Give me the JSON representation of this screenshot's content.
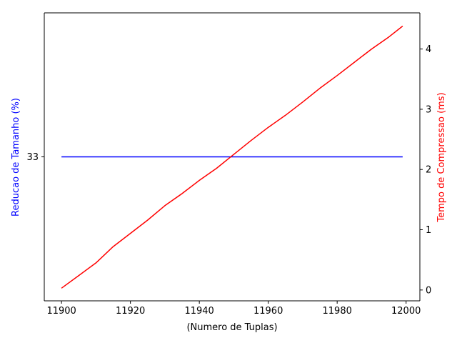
{
  "chart_data": {
    "type": "line",
    "xlabel": "(Numero de Tuplas)",
    "ylabel_left": "Reducao de Tamanho (%)",
    "ylabel_right": "Tempo de Compressao (ms)",
    "xlim": [
      11895,
      12004
    ],
    "xticks": [
      11900,
      11920,
      11940,
      11960,
      11980,
      12000
    ],
    "left_ylim": [
      20.0,
      46.0
    ],
    "left_yticks": [
      33
    ],
    "right_ylim": [
      -0.18,
      4.6
    ],
    "right_yticks": [
      0,
      1,
      2,
      3,
      4
    ],
    "colors": {
      "left": "#0000ff",
      "right": "#ff0000",
      "axes": "#000000"
    },
    "series": [
      {
        "axis": "left",
        "color": "#0000ff",
        "points": [
          [
            11900,
            33
          ],
          [
            11999,
            33
          ]
        ]
      },
      {
        "axis": "right",
        "color": "#ff0000",
        "points": [
          [
            11900,
            0.03
          ],
          [
            11905,
            0.24
          ],
          [
            11910,
            0.45
          ],
          [
            11915,
            0.72
          ],
          [
            11920,
            0.94
          ],
          [
            11925,
            1.16
          ],
          [
            11930,
            1.4
          ],
          [
            11935,
            1.6
          ],
          [
            11940,
            1.82
          ],
          [
            11945,
            2.02
          ],
          [
            11950,
            2.25
          ],
          [
            11955,
            2.48
          ],
          [
            11960,
            2.7
          ],
          [
            11965,
            2.9
          ],
          [
            11970,
            3.12
          ],
          [
            11975,
            3.35
          ],
          [
            11980,
            3.56
          ],
          [
            11985,
            3.78
          ],
          [
            11990,
            4.0
          ],
          [
            11995,
            4.2
          ],
          [
            11999,
            4.38
          ]
        ]
      }
    ]
  }
}
